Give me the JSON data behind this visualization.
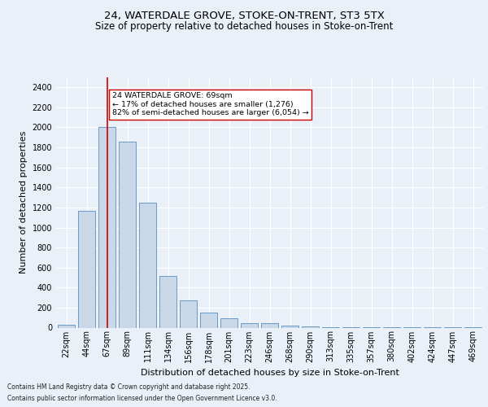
{
  "title_line1": "24, WATERDALE GROVE, STOKE-ON-TRENT, ST3 5TX",
  "title_line2": "Size of property relative to detached houses in Stoke-on-Trent",
  "xlabel": "Distribution of detached houses by size in Stoke-on-Trent",
  "ylabel": "Number of detached properties",
  "footer_line1": "Contains HM Land Registry data © Crown copyright and database right 2025.",
  "footer_line2": "Contains public sector information licensed under the Open Government Licence v3.0.",
  "bin_labels": [
    "22sqm",
    "44sqm",
    "67sqm",
    "89sqm",
    "111sqm",
    "134sqm",
    "156sqm",
    "178sqm",
    "201sqm",
    "223sqm",
    "246sqm",
    "268sqm",
    "290sqm",
    "313sqm",
    "335sqm",
    "357sqm",
    "380sqm",
    "402sqm",
    "424sqm",
    "447sqm",
    "469sqm"
  ],
  "bin_values": [
    25,
    1170,
    2000,
    1860,
    1245,
    520,
    275,
    150,
    95,
    45,
    45,
    20,
    15,
    5,
    3,
    2,
    2,
    2,
    2,
    2,
    2
  ],
  "bar_color": "#c8d8e8",
  "bar_edge_color": "#5a8fc0",
  "property_bin_index": 2,
  "vline_color": "#cc0000",
  "annotation_text": "24 WATERDALE GROVE: 69sqm\n← 17% of detached houses are smaller (1,276)\n82% of semi-detached houses are larger (6,054) →",
  "annotation_box_color": "#ffffff",
  "annotation_box_edge": "#cc0000",
  "ylim": [
    0,
    2500
  ],
  "yticks": [
    0,
    200,
    400,
    600,
    800,
    1000,
    1200,
    1400,
    1600,
    1800,
    2000,
    2200,
    2400
  ],
  "bg_color": "#eaf0f8",
  "grid_color": "#ffffff",
  "title_fontsize": 9.5,
  "subtitle_fontsize": 8.5,
  "axis_label_fontsize": 8,
  "tick_fontsize": 7,
  "footer_fontsize": 5.5,
  "annotation_fontsize": 6.8
}
